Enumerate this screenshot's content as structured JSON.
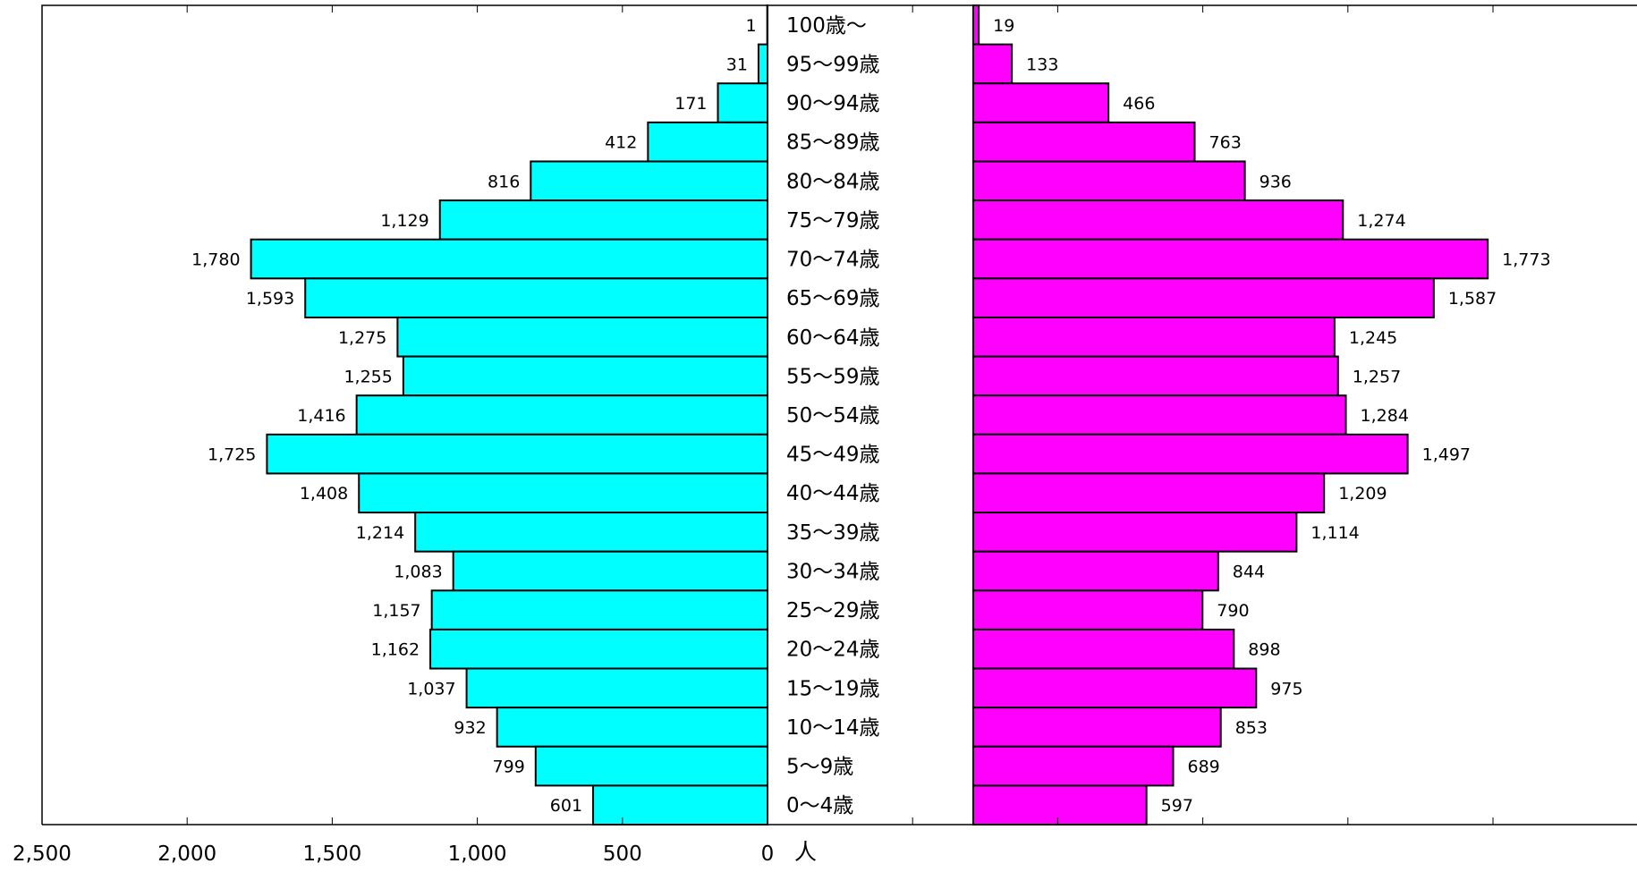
{
  "chart_data": {
    "type": "bar",
    "orientation": "horizontal-butterfly",
    "unit_label": "人",
    "xlim": [
      0,
      2500
    ],
    "left_ticks": [
      "2,500",
      "2,000",
      "1,500",
      "1,000",
      "500",
      "0"
    ],
    "grid": false,
    "legend": "none",
    "categories": [
      "100歳～",
      "95～99歳",
      "90～94歳",
      "85～89歳",
      "80～84歳",
      "75～79歳",
      "70～74歳",
      "65～69歳",
      "60～64歳",
      "55～59歳",
      "50～54歳",
      "45～49歳",
      "40～44歳",
      "35～39歳",
      "30～34歳",
      "25～29歳",
      "20～24歳",
      "15～19歳",
      "10～14歳",
      "5～9歳",
      "0～4歳"
    ],
    "series": [
      {
        "side": "left",
        "color": "#00FFFF",
        "values": [
          1,
          31,
          171,
          412,
          816,
          1129,
          1780,
          1593,
          1275,
          1255,
          1416,
          1725,
          1408,
          1214,
          1083,
          1157,
          1162,
          1037,
          932,
          799,
          601
        ],
        "labels": [
          "1",
          "31",
          "171",
          "412",
          "816",
          "1,129",
          "1,780",
          "1,593",
          "1,275",
          "1,255",
          "1,416",
          "1,725",
          "1,408",
          "1,214",
          "1,083",
          "1,157",
          "1,162",
          "1,037",
          "932",
          "799",
          "601"
        ]
      },
      {
        "side": "right",
        "color": "#FF00FF",
        "values": [
          19,
          133,
          466,
          763,
          936,
          1274,
          1773,
          1587,
          1245,
          1257,
          1284,
          1497,
          1209,
          1114,
          844,
          790,
          898,
          975,
          853,
          689,
          597
        ],
        "labels": [
          "19",
          "133",
          "466",
          "763",
          "936",
          "1,274",
          "1,773",
          "1,587",
          "1,245",
          "1,257",
          "1,284",
          "1,497",
          "1,209",
          "1,114",
          "844",
          "790",
          "898",
          "975",
          "853",
          "689",
          "597"
        ]
      }
    ]
  }
}
